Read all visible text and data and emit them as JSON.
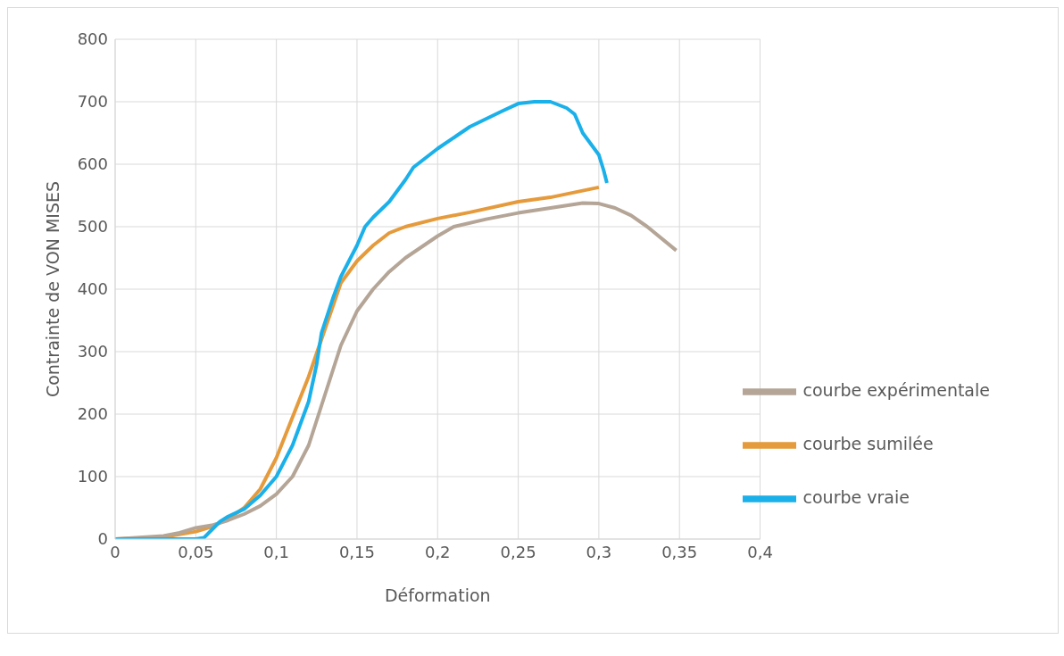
{
  "chart_data": {
    "type": "line",
    "xlabel": "Déformation",
    "ylabel": "Contrainte de VON MISES",
    "xlim": [
      0,
      0.4
    ],
    "xticks": [
      0,
      {
        "value": 0.05,
        "label": "0,05"
      },
      {
        "value": 0.1,
        "label": "0,1"
      },
      {
        "value": 0.15,
        "label": "0,15"
      },
      {
        "value": 0.2,
        "label": "0,2"
      },
      {
        "value": 0.25,
        "label": "0,25"
      },
      {
        "value": 0.3,
        "label": "0,3"
      },
      {
        "value": 0.35,
        "label": "0,35"
      },
      {
        "value": 0.4,
        "label": "0,4"
      }
    ],
    "ylim": [
      0,
      800
    ],
    "yticks": [
      0,
      100,
      200,
      300,
      400,
      500,
      600,
      700,
      800
    ],
    "grid": true,
    "legend": "right",
    "marker": "none",
    "line_style": "solid",
    "series": [
      {
        "name": "courbe sumilée",
        "color": "#e59b3c",
        "x": [
          0,
          0.03,
          0.05,
          0.06,
          0.07,
          0.08,
          0.09,
          0.1,
          0.11,
          0.12,
          0.13,
          0.14,
          0.15,
          0.16,
          0.17,
          0.18,
          0.2,
          0.22,
          0.25,
          0.27,
          0.3
        ],
        "values": [
          0,
          3,
          12,
          20,
          32,
          50,
          80,
          130,
          195,
          260,
          335,
          410,
          445,
          470,
          490,
          500,
          513,
          523,
          540,
          547,
          563
        ]
      },
      {
        "name": "courbe expérimentale",
        "color": "#b4a597",
        "x": [
          0,
          0.03,
          0.04,
          0.05,
          0.06,
          0.07,
          0.08,
          0.09,
          0.1,
          0.11,
          0.12,
          0.13,
          0.14,
          0.15,
          0.16,
          0.17,
          0.18,
          0.2,
          0.21,
          0.23,
          0.25,
          0.27,
          0.29,
          0.3,
          0.31,
          0.32,
          0.33,
          0.348
        ],
        "values": [
          0,
          5,
          10,
          18,
          22,
          30,
          40,
          53,
          72,
          100,
          150,
          230,
          310,
          365,
          400,
          428,
          450,
          485,
          500,
          512,
          522,
          530,
          538,
          537,
          530,
          518,
          500,
          462
        ]
      },
      {
        "name": "courbe vraie",
        "color": "#1ab0ea",
        "x": [
          0,
          0.05,
          0.055,
          0.06,
          0.065,
          0.07,
          0.08,
          0.09,
          0.1,
          0.11,
          0.12,
          0.125,
          0.128,
          0.135,
          0.14,
          0.15,
          0.155,
          0.16,
          0.17,
          0.18,
          0.185,
          0.2,
          0.22,
          0.24,
          0.25,
          0.26,
          0.27,
          0.28,
          0.285,
          0.29,
          0.3,
          0.303,
          0.305
        ],
        "values": [
          0,
          0,
          2,
          15,
          28,
          36,
          48,
          70,
          100,
          150,
          220,
          280,
          330,
          385,
          420,
          470,
          500,
          515,
          540,
          575,
          595,
          625,
          660,
          685,
          697,
          700,
          700,
          690,
          680,
          650,
          615,
          590,
          570
        ]
      }
    ]
  }
}
